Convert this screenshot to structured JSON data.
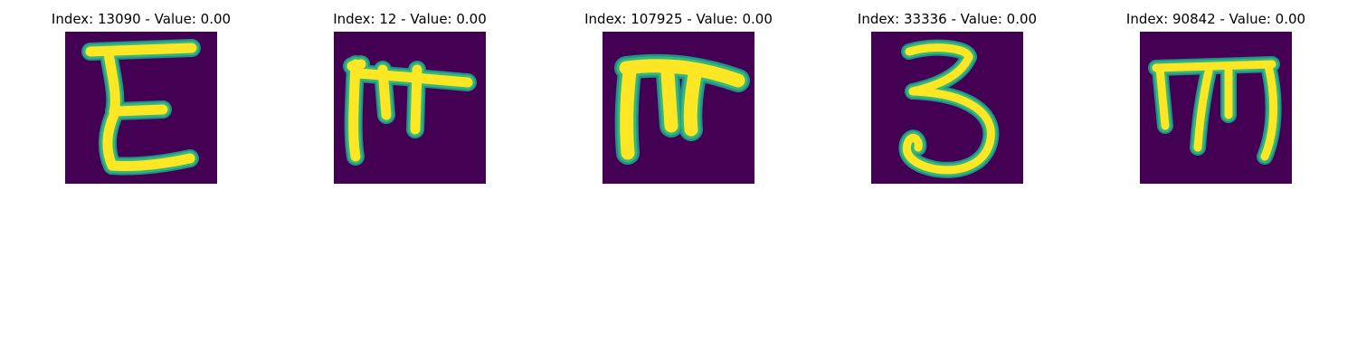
{
  "figure": {
    "panels": [
      {
        "title": "Index: 13090 - Value: 0.00",
        "glyph": "letter-E-handwritten"
      },
      {
        "title": "Index: 12 - Value: 0.00",
        "glyph": "handwritten-character"
      },
      {
        "title": "Index: 107925 - Value: 0.00",
        "glyph": "handwritten-character"
      },
      {
        "title": "Index: 33336 - Value: 0.00",
        "glyph": "digit-3-handwritten"
      },
      {
        "title": "Index: 90842 - Value: 0.00",
        "glyph": "handwritten-character"
      }
    ]
  },
  "colors": {
    "background_dark": "#440154",
    "stroke_bright": "#fde725",
    "stroke_mid": "#35b779",
    "stroke_edge": "#21918c"
  }
}
